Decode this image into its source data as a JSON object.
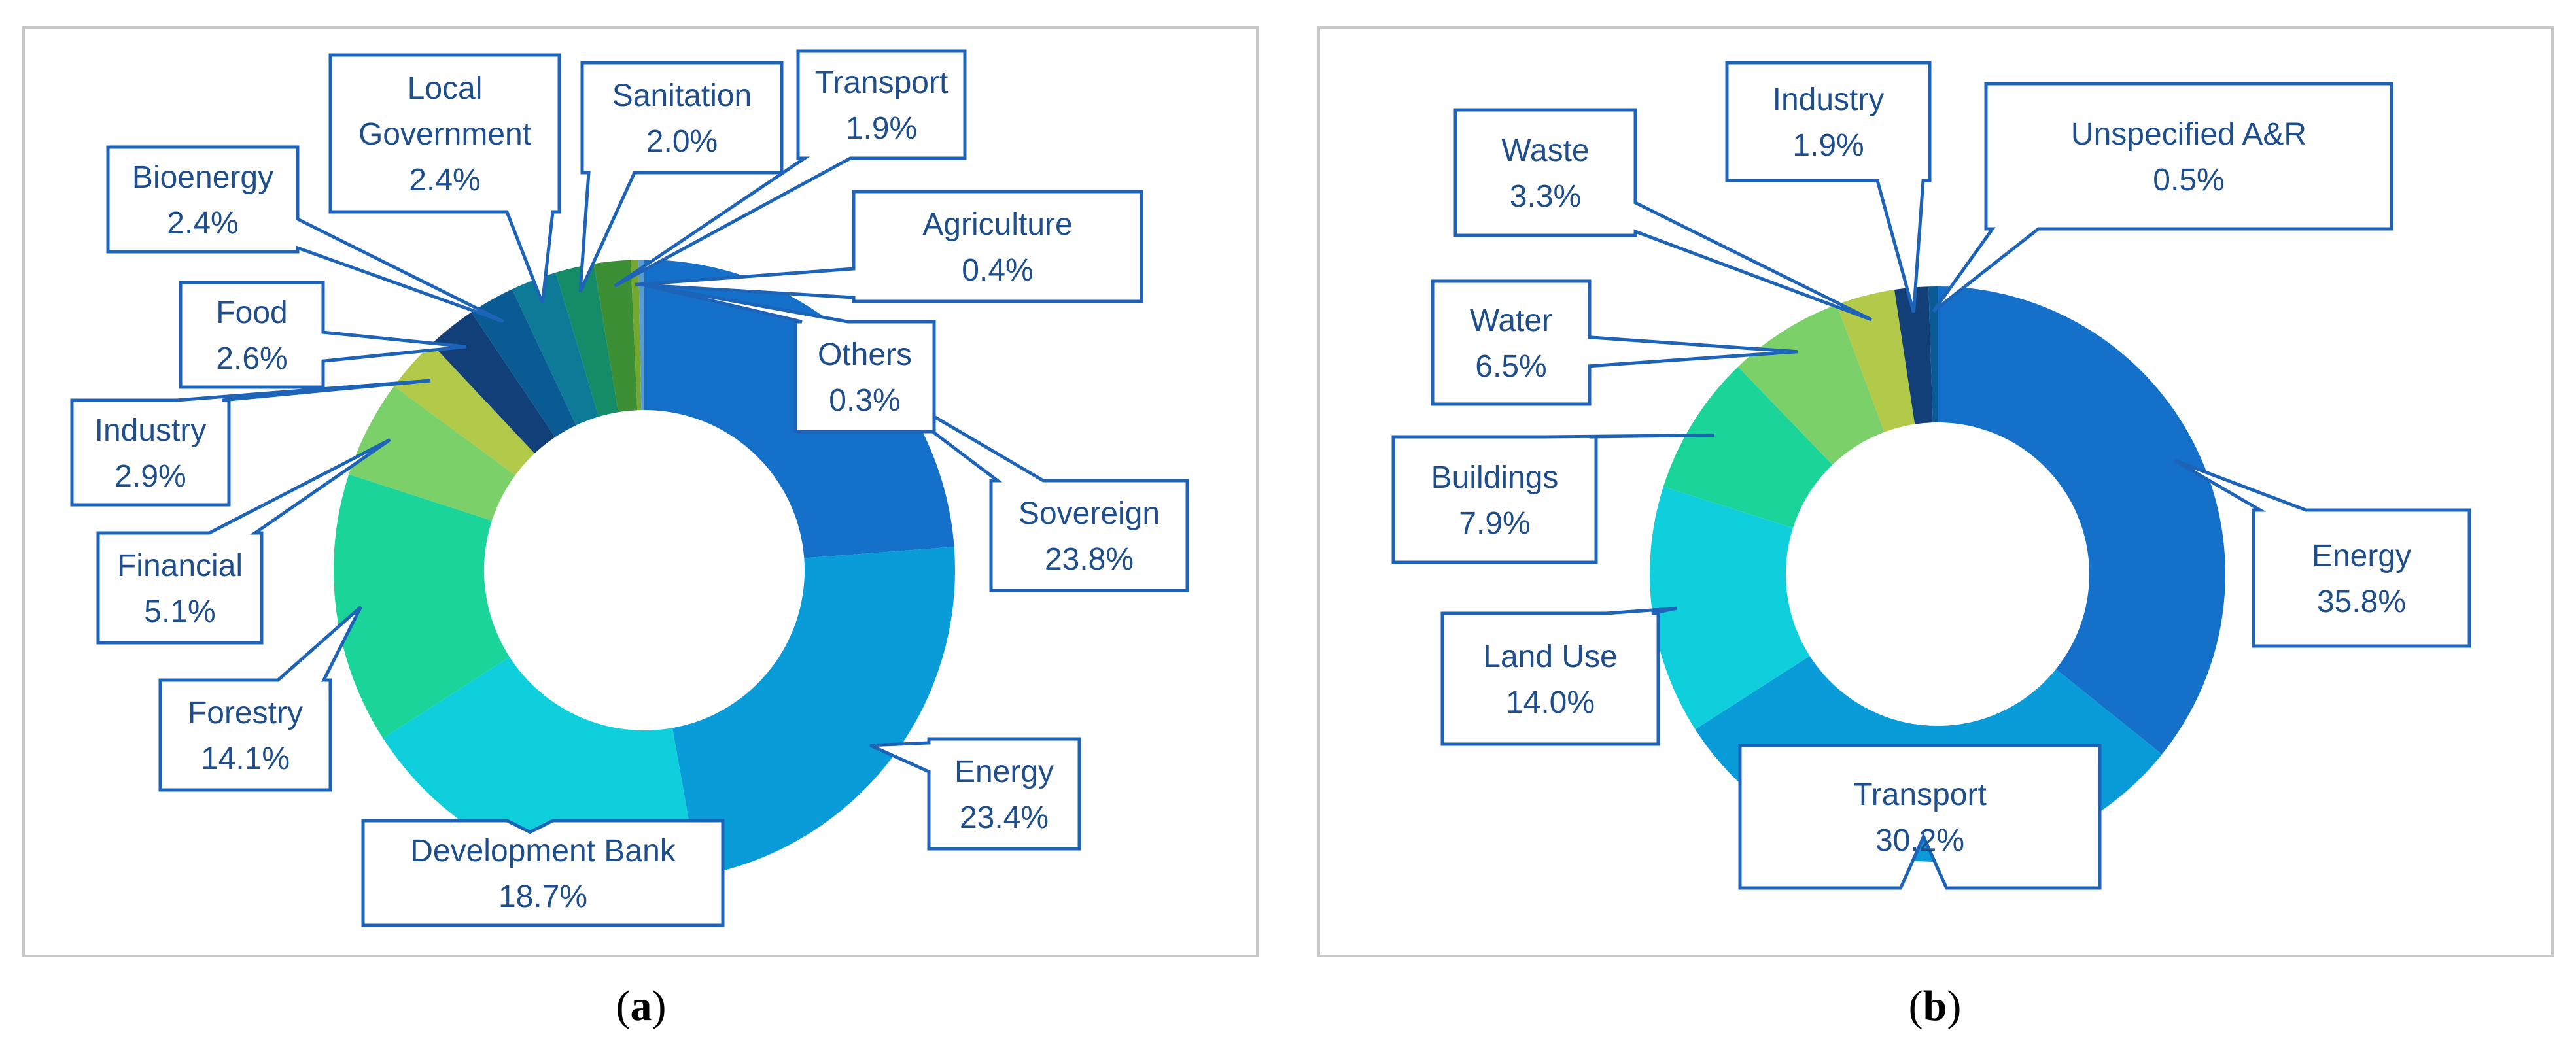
{
  "chart_data": [
    {
      "type": "pie",
      "donut": true,
      "start_angle_deg": 0,
      "direction": "clockwise",
      "caption": "a",
      "slices": [
        {
          "label": "Sovereign",
          "value": 23.8,
          "display": "23.8%",
          "color": "#1470c8"
        },
        {
          "label": "Energy",
          "value": 23.4,
          "display": "23.4%",
          "color": "#0a9bd9"
        },
        {
          "label": "Development Bank",
          "value": 18.7,
          "display": "18.7%",
          "color": "#10cfdc"
        },
        {
          "label": "Forestry",
          "value": 14.1,
          "display": "14.1%",
          "color": "#1ad49a"
        },
        {
          "label": "Financial",
          "value": 5.1,
          "display": "5.1%",
          "color": "#7bd06a"
        },
        {
          "label": "Industry",
          "value": 2.9,
          "display": "2.9%",
          "color": "#b2c94a"
        },
        {
          "label": "Food",
          "value": 2.6,
          "display": "2.6%",
          "color": "#123f78"
        },
        {
          "label": "Bioenergy",
          "value": 2.4,
          "display": "2.4%",
          "color": "#0a5a94"
        },
        {
          "label": "Local Government",
          "value": 2.4,
          "display": "2.4%",
          "color": "#0d7a98"
        },
        {
          "label": "Sanitation",
          "value": 2.0,
          "display": "2.0%",
          "color": "#138c67"
        },
        {
          "label": "Transport",
          "value": 1.9,
          "display": "1.9%",
          "color": "#3c8f35"
        },
        {
          "label": "Agriculture",
          "value": 0.4,
          "display": "0.4%",
          "color": "#74a830"
        },
        {
          "label": "Others",
          "value": 0.3,
          "display": "0.3%",
          "color": "#5a9bd5"
        }
      ]
    },
    {
      "type": "pie",
      "donut": true,
      "start_angle_deg": 0,
      "direction": "clockwise",
      "caption": "b",
      "slices": [
        {
          "label": "Energy",
          "value": 35.8,
          "display": "35.8%",
          "color": "#1470c8"
        },
        {
          "label": "Transport",
          "value": 30.2,
          "display": "30.2%",
          "color": "#0a9bd9"
        },
        {
          "label": "Land Use",
          "value": 14.0,
          "display": "14.0%",
          "color": "#10cfdc"
        },
        {
          "label": "Buildings",
          "value": 7.9,
          "display": "7.9%",
          "color": "#1ad49a"
        },
        {
          "label": "Water",
          "value": 6.5,
          "display": "6.5%",
          "color": "#7bd06a"
        },
        {
          "label": "Waste",
          "value": 3.3,
          "display": "3.3%",
          "color": "#b2c94a"
        },
        {
          "label": "Industry",
          "value": 1.9,
          "display": "1.9%",
          "color": "#123f78"
        },
        {
          "label": "Unspecified A&R",
          "value": 0.5,
          "display": "0.5%",
          "color": "#0a5a94"
        }
      ]
    }
  ]
}
